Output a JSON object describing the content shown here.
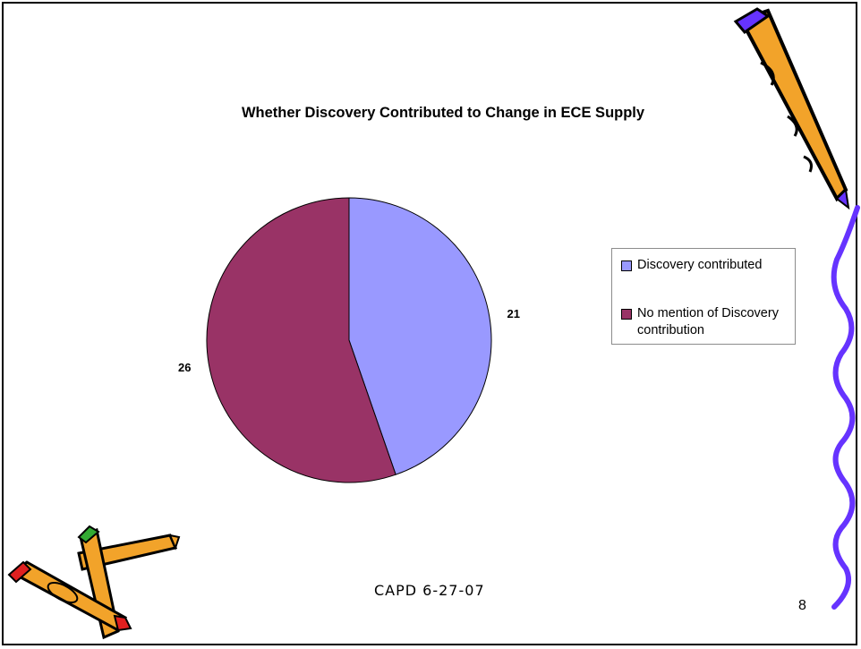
{
  "chart_data": {
    "type": "pie",
    "title": "Whether Discovery Contributed to Change in ECE Supply",
    "slices": [
      {
        "label": "Discovery contributed",
        "value": 21,
        "color": "#9999ff"
      },
      {
        "label": "No mention of Discovery contribution",
        "value": 26,
        "color": "#993366"
      }
    ],
    "legend": {
      "placement": "right"
    }
  },
  "slide": {
    "footer": "CAPD 6-27-07",
    "page_number": "8"
  },
  "decorations": [
    "pencil-icon",
    "crayons-icon",
    "squiggle-line"
  ],
  "colors": {
    "squiggle": "#6633ff",
    "pencil_body": "#f2a32a",
    "crayon_red": "#e02020",
    "crayon_green": "#33aa33"
  }
}
